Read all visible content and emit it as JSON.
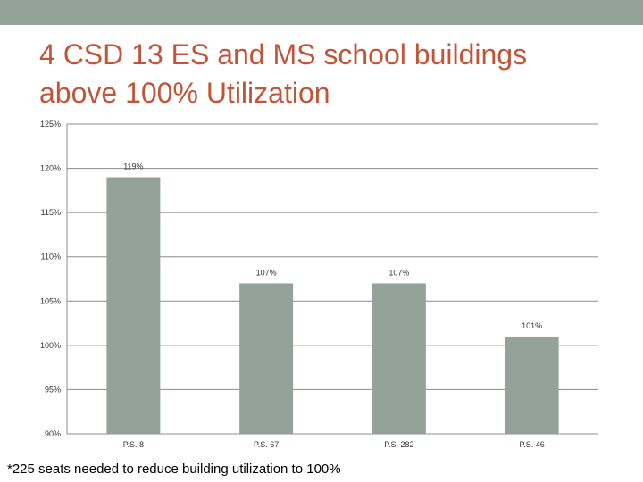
{
  "slide": {
    "title_lines": [
      "4 CSD 13 ES and MS school buildings",
      "above 100% Utilization"
    ],
    "footnote": "*225 seats needed to reduce building utilization to 100%"
  },
  "colors": {
    "band": "#94a39a",
    "title": "#c0553a",
    "bar": "#94a39a",
    "grid": "#8c8c8c"
  },
  "chart_data": {
    "type": "bar",
    "title": "",
    "xlabel": "",
    "ylabel": "",
    "categories": [
      "P.S. 8",
      "P.S. 67",
      "P.S. 282",
      "P.S. 46"
    ],
    "values": [
      119,
      107,
      107,
      101
    ],
    "data_labels": [
      "119%",
      "107%",
      "107%",
      "101%"
    ],
    "ylim": [
      90,
      125
    ],
    "yticks": [
      90,
      95,
      100,
      105,
      110,
      115,
      120,
      125
    ],
    "ytick_labels": [
      "90%",
      "95%",
      "100%",
      "105%",
      "110%",
      "115%",
      "120%",
      "125%"
    ],
    "grid": true,
    "legend": "none"
  }
}
